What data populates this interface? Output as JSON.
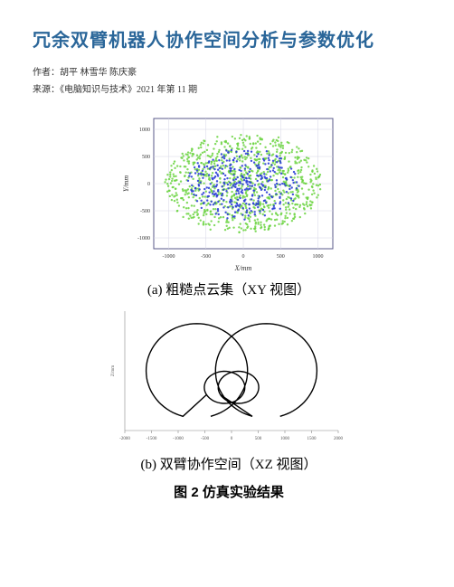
{
  "title": "冗余双臂机器人协作空间分析与参数优化",
  "author_line": "作者：胡平 林雪华 陈庆豪",
  "source_line": "来源：《电脑知识与技术》2021 年第 11 期",
  "scatter_chart": {
    "type": "scatter",
    "xlabel": "X/mm",
    "ylabel": "Y/mm",
    "xlim": [
      -1200,
      1200
    ],
    "ylim": [
      -1200,
      1200
    ],
    "xticks": [
      -1000,
      -500,
      0,
      500,
      1000
    ],
    "yticks": [
      -1000,
      -500,
      0,
      500,
      1000
    ],
    "label_fontsize": 8,
    "tick_fontsize": 6,
    "axis_color": "#5a5a8a",
    "grid_color": "#d6d6e6",
    "background_color": "#ffffff",
    "series": [
      {
        "color": "#6bd441",
        "marker": "dot",
        "n": 900,
        "radius_range": [
          50,
          1050
        ],
        "size": 1.2,
        "opacity": 0.85
      },
      {
        "color": "#2b3fd6",
        "marker": "dot",
        "n": 350,
        "radius_range": [
          30,
          750
        ],
        "size": 1.2,
        "opacity": 0.9
      }
    ]
  },
  "subcap_a": "(a) 粗糙点云集（XY 视图）",
  "outline_chart": {
    "type": "line",
    "xlabel": "Z/mm",
    "xlim": [
      -2000,
      2000
    ],
    "xticks": [
      -2000,
      -1500,
      -1000,
      -500,
      0,
      500,
      1000,
      1500,
      2000
    ],
    "ylim": [
      -1200,
      1200
    ],
    "ylabel": "",
    "tick_fontsize": 5,
    "line_color": "#000000",
    "line_width": 1.4,
    "background_color": "#ffffff",
    "grid_on": false
  },
  "subcap_b": "(b) 双臂协作空间（XZ 视图）",
  "figcap": "图 2  仿真实验结果",
  "colors": {
    "title_color": "#2a6699",
    "text_color": "#333333",
    "green": "#6bd441",
    "blue": "#2b3fd6"
  }
}
